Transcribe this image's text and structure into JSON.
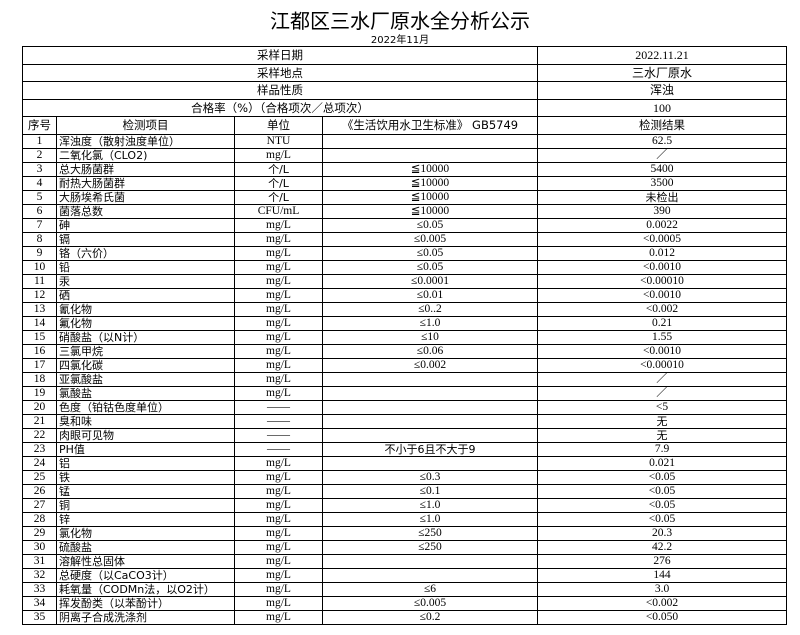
{
  "title": "江都区三水厂原水全分析公示",
  "subtitle": "2022年11月",
  "meta": [
    {
      "label": "采样日期",
      "value": "2022.11.21"
    },
    {
      "label": "采样地点",
      "value": "三水厂原水"
    },
    {
      "label": "样品性质",
      "value": "浑浊"
    },
    {
      "label": "合格率（%）（合格项次／总项次）",
      "value": "100"
    }
  ],
  "columns": [
    "序号",
    "检测项目",
    "单位",
    "《生活饮用水卫生标准》 GB5749",
    "检测结果"
  ],
  "rows": [
    [
      "1",
      "浑浊度（散射浊度单位）",
      "NTU",
      "",
      "62.5"
    ],
    [
      "2",
      "二氧化氯（CLO2)",
      "mg/L",
      "",
      "／"
    ],
    [
      "3",
      "总大肠菌群",
      "个/L",
      "≦10000",
      "5400"
    ],
    [
      "4",
      "耐热大肠菌群",
      "个/L",
      "≦10000",
      "3500"
    ],
    [
      "5",
      "大肠埃希氏菌",
      "个/L",
      "≦10000",
      "未检出"
    ],
    [
      "6",
      "菌落总数",
      "CFU/mL",
      "≦10000",
      "390"
    ],
    [
      "7",
      "砷",
      "mg/L",
      "≤0.05",
      "0.0022"
    ],
    [
      "8",
      "镉",
      "mg/L",
      "≤0.005",
      "<0.0005"
    ],
    [
      "9",
      "铬（六价）",
      "mg/L",
      "≤0.05",
      "0.012"
    ],
    [
      "10",
      "铅",
      "mg/L",
      "≤0.05",
      "<0.0010"
    ],
    [
      "11",
      "汞",
      "mg/L",
      "≤0.0001",
      "<0.00010"
    ],
    [
      "12",
      "硒",
      "mg/L",
      "≤0.01",
      "<0.0010"
    ],
    [
      "13",
      "氰化物",
      "mg/L",
      "≤0..2",
      "<0.002"
    ],
    [
      "14",
      "氟化物",
      "mg/L",
      "≤1.0",
      "0.21"
    ],
    [
      "15",
      "硝酸盐（以N计）",
      "mg/L",
      "≤10",
      "1.55"
    ],
    [
      "16",
      "三氯甲烷",
      "mg/L",
      "≤0.06",
      "<0.0010"
    ],
    [
      "17",
      "四氯化碳",
      "mg/L",
      "≤0.002",
      "<0.00010"
    ],
    [
      "18",
      "亚氯酸盐",
      "mg/L",
      "",
      "／"
    ],
    [
      "19",
      "氯酸盐",
      "mg/L",
      "",
      "／"
    ],
    [
      "20",
      "色度（铂钴色度单位）",
      "——",
      "",
      "<5"
    ],
    [
      "21",
      "臭和味",
      "——",
      "",
      "无"
    ],
    [
      "22",
      "肉眼可见物",
      "——",
      "",
      "无"
    ],
    [
      "23",
      "PH值",
      "——",
      "不小于6且不大于9",
      "7.9"
    ],
    [
      "24",
      "铝",
      "mg/L",
      "",
      "0.021"
    ],
    [
      "25",
      "铁",
      "mg/L",
      "≤0.3",
      "<0.05"
    ],
    [
      "26",
      "锰",
      "mg/L",
      "≤0.1",
      "<0.05"
    ],
    [
      "27",
      "铜",
      "mg/L",
      "≤1.0",
      "<0.05"
    ],
    [
      "28",
      "锌",
      "mg/L",
      "≤1.0",
      "<0.05"
    ],
    [
      "29",
      "氯化物",
      "mg/L",
      "≤250",
      "20.3"
    ],
    [
      "30",
      "硫酸盐",
      "mg/L",
      "≤250",
      "42.2"
    ],
    [
      "31",
      "溶解性总固体",
      "mg/L",
      "",
      "276"
    ],
    [
      "32",
      "总硬度（以CaCO3计）",
      "mg/L",
      "",
      "144"
    ],
    [
      "33",
      "耗氧量（CODMn法，以O2计）",
      "mg/L",
      "≤6",
      "3.0"
    ],
    [
      "34",
      "挥发酚类（以苯酚计）",
      "mg/L",
      "≤0.005",
      "<0.002"
    ],
    [
      "35",
      "阴离子合成洗涤剂",
      "mg/L",
      "≤0.2",
      "<0.050"
    ]
  ]
}
